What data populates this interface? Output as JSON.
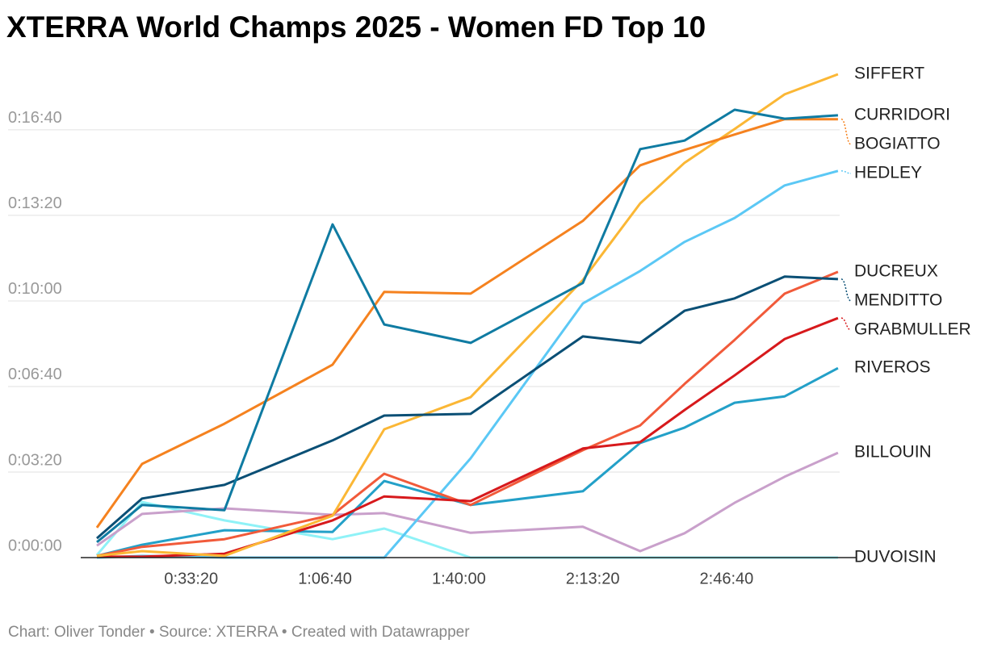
{
  "chart_data": {
    "type": "line",
    "title": "XTERRA World Champs 2025 - Women FD Top 10",
    "footer": "Chart: Oliver Tonder • Source: XTERRA • Created with Datawrapper",
    "x": [
      591,
      1267,
      2497,
      4113,
      4885,
      6176,
      7853,
      8709,
      9373,
      10121,
      10869,
      11665
    ],
    "xlim": [
      350,
      11690
    ],
    "xticks": [
      {
        "value": 2000,
        "label": "0:33:20"
      },
      {
        "value": 4000,
        "label": "1:06:40"
      },
      {
        "value": 6000,
        "label": "1:40:00"
      },
      {
        "value": 8000,
        "label": "2:13:20"
      },
      {
        "value": 10000,
        "label": "2:46:40"
      }
    ],
    "ylim": [
      0,
      1130
    ],
    "yticks": [
      {
        "value": 0,
        "label": "0:00:00"
      },
      {
        "value": 200,
        "label": "0:03:20"
      },
      {
        "value": 400,
        "label": "0:06:40"
      },
      {
        "value": 600,
        "label": "0:10:00"
      },
      {
        "value": 800,
        "label": "0:13:20"
      },
      {
        "value": 1000,
        "label": "0:16:40"
      }
    ],
    "grid": true,
    "series": [
      {
        "name": "DUVOISIN",
        "color": "#8ff2f7",
        "values": [
          6,
          130,
          87,
          43,
          68,
          0,
          0,
          0,
          0,
          0,
          0,
          0
        ]
      },
      {
        "name": "BILLOUIN",
        "color": "#c9a0cb",
        "values": [
          28,
          102,
          115,
          100,
          104,
          58,
          72,
          15,
          57,
          128,
          189,
          245
        ]
      },
      {
        "name": "HEDLEY",
        "color": "#5bc8f5",
        "values": [
          0,
          4,
          0,
          0,
          0,
          232,
          594,
          670,
          738,
          794,
          870,
          904
        ]
      },
      {
        "name": "RIVEROS",
        "color": "#23a0c8",
        "values": [
          4,
          30,
          64,
          60,
          179,
          123,
          155,
          268,
          304,
          362,
          377,
          443
        ]
      },
      {
        "name": "DUCREUX",
        "color": "#f15a3a",
        "values": [
          4,
          25,
          43,
          100,
          196,
          123,
          251,
          309,
          406,
          509,
          617,
          668
        ]
      },
      {
        "name": "GRABMULLER",
        "color": "#d7191c",
        "values": [
          2,
          2,
          9,
          87,
          143,
          132,
          255,
          270,
          345,
          426,
          511,
          560
        ]
      },
      {
        "name": "SIFFERT",
        "color": "#fbb735",
        "values": [
          4,
          15,
          4,
          98,
          300,
          375,
          649,
          828,
          923,
          1002,
          1083,
          1130
        ]
      },
      {
        "name": "MENDITTO",
        "color": "#0a4f75",
        "values": [
          45,
          138,
          170,
          274,
          332,
          336,
          517,
          502,
          577,
          606,
          657,
          651
        ]
      },
      {
        "name": "BOGIATTO",
        "color": "#f5821f",
        "values": [
          70,
          219,
          313,
          451,
          621,
          617,
          787,
          917,
          953,
          989,
          1025,
          1025
        ]
      },
      {
        "name": "CURRIDORI",
        "color": "#0f7ba2",
        "values": [
          36,
          123,
          111,
          779,
          545,
          502,
          642,
          955,
          975,
          1047,
          1026,
          1034
        ]
      }
    ]
  }
}
